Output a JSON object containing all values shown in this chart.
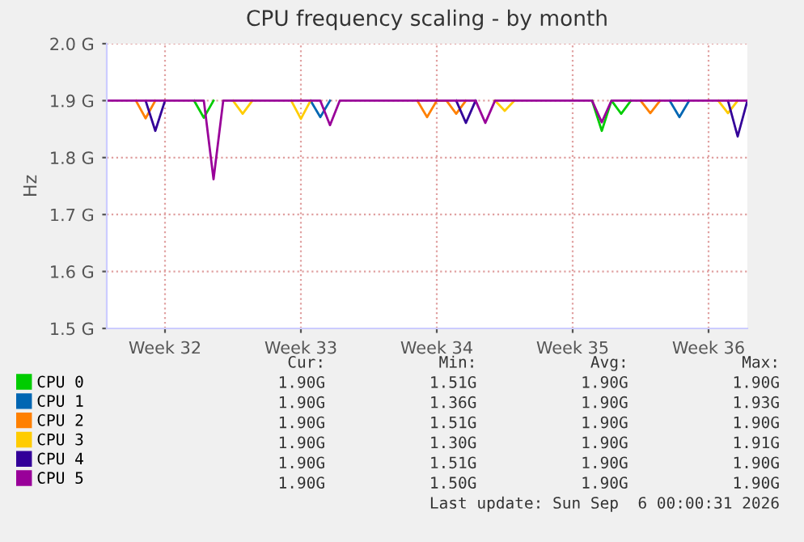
{
  "chart_data": {
    "type": "line",
    "title": "CPU frequency scaling - by month",
    "ylabel": "Hz",
    "categories": [
      null,
      null,
      null,
      null,
      null,
      null,
      "Week 32",
      null,
      null,
      null,
      null,
      null,
      null,
      null,
      null,
      null,
      null,
      null,
      null,
      null,
      "Week 33",
      null,
      null,
      null,
      null,
      null,
      null,
      null,
      null,
      null,
      null,
      null,
      null,
      null,
      "Week 34",
      null,
      null,
      null,
      null,
      null,
      null,
      null,
      null,
      null,
      null,
      null,
      null,
      null,
      "Week 35",
      null,
      null,
      null,
      null,
      null,
      null,
      null,
      null,
      null,
      null,
      null,
      null,
      null,
      "Week 36",
      null,
      null,
      null,
      null
    ],
    "ylim": [
      1.5,
      2.0
    ],
    "yticks": [
      {
        "value": 1.5,
        "label": "1.5 G"
      },
      {
        "value": 1.6,
        "label": "1.6 G"
      },
      {
        "value": 1.7,
        "label": "1.7 G"
      },
      {
        "value": 1.8,
        "label": "1.8 G"
      },
      {
        "value": 1.9,
        "label": "1.9 G"
      },
      {
        "value": 2.0,
        "label": "2.0 G"
      }
    ],
    "grid": true,
    "legend": "bottom",
    "series": [
      {
        "name": "CPU 0",
        "color": "#00cc00",
        "values": [
          null,
          null,
          null,
          null,
          null,
          null,
          null,
          null,
          null,
          1.9,
          1.87,
          1.9,
          null,
          null,
          null,
          null,
          null,
          null,
          null,
          null,
          null,
          null,
          null,
          null,
          null,
          null,
          null,
          null,
          null,
          null,
          null,
          null,
          null,
          null,
          null,
          null,
          null,
          null,
          null,
          null,
          null,
          null,
          null,
          null,
          null,
          null,
          null,
          null,
          null,
          null,
          1.9,
          1.847,
          1.9,
          1.877,
          1.9,
          null,
          null,
          null,
          null,
          null,
          null,
          null,
          null,
          null,
          null,
          null,
          null
        ]
      },
      {
        "name": "CPU 1",
        "color": "#0066b3",
        "values": [
          null,
          null,
          null,
          null,
          null,
          null,
          null,
          null,
          null,
          null,
          null,
          null,
          null,
          null,
          null,
          null,
          null,
          null,
          null,
          null,
          null,
          1.9,
          1.871,
          1.9,
          null,
          null,
          null,
          null,
          null,
          null,
          null,
          null,
          null,
          null,
          null,
          null,
          null,
          null,
          null,
          null,
          null,
          null,
          null,
          null,
          null,
          null,
          null,
          null,
          null,
          null,
          null,
          null,
          null,
          null,
          null,
          null,
          null,
          null,
          1.9,
          1.871,
          1.9,
          null,
          null,
          null,
          null,
          null,
          null
        ]
      },
      {
        "name": "CPU 2",
        "color": "#ff8000",
        "values": [
          null,
          null,
          null,
          1.9,
          1.869,
          1.9,
          null,
          null,
          null,
          null,
          null,
          null,
          null,
          null,
          null,
          null,
          null,
          null,
          null,
          null,
          null,
          null,
          null,
          null,
          null,
          null,
          null,
          null,
          null,
          null,
          null,
          null,
          1.9,
          1.871,
          1.9,
          1.9,
          1.877,
          1.9,
          null,
          null,
          null,
          null,
          null,
          null,
          null,
          null,
          null,
          null,
          null,
          null,
          null,
          null,
          null,
          null,
          null,
          1.9,
          1.878,
          1.9,
          null,
          null,
          null,
          null,
          null,
          null,
          null,
          null,
          null
        ]
      },
      {
        "name": "CPU 3",
        "color": "#ffcc00",
        "values": [
          null,
          null,
          null,
          null,
          null,
          null,
          null,
          null,
          null,
          null,
          null,
          null,
          null,
          1.9,
          1.877,
          1.9,
          null,
          null,
          null,
          1.9,
          1.868,
          1.9,
          null,
          null,
          null,
          null,
          null,
          null,
          null,
          null,
          null,
          null,
          null,
          null,
          null,
          null,
          null,
          null,
          null,
          null,
          1.9,
          1.882,
          1.9,
          null,
          null,
          null,
          null,
          null,
          null,
          null,
          null,
          null,
          null,
          null,
          null,
          null,
          null,
          null,
          null,
          null,
          null,
          null,
          null,
          1.9,
          1.878,
          1.9,
          null
        ]
      },
      {
        "name": "CPU 4",
        "color": "#330099",
        "values": [
          null,
          null,
          null,
          null,
          1.9,
          1.847,
          1.9,
          null,
          null,
          null,
          null,
          null,
          null,
          null,
          null,
          null,
          null,
          null,
          null,
          null,
          null,
          null,
          null,
          null,
          null,
          null,
          null,
          null,
          null,
          null,
          null,
          null,
          null,
          null,
          null,
          null,
          1.9,
          1.861,
          1.9,
          null,
          null,
          null,
          null,
          null,
          null,
          null,
          null,
          null,
          null,
          null,
          null,
          null,
          null,
          null,
          null,
          null,
          null,
          null,
          null,
          null,
          null,
          null,
          null,
          null,
          1.9,
          1.837,
          1.9
        ]
      },
      {
        "name": "CPU 5",
        "color": "#990099",
        "values": [
          1.9,
          1.9,
          1.9,
          1.9,
          1.9,
          1.9,
          1.9,
          1.9,
          1.9,
          1.9,
          1.9,
          1.762,
          1.9,
          1.9,
          1.9,
          1.9,
          1.9,
          1.9,
          1.9,
          1.9,
          1.9,
          1.9,
          1.9,
          1.857,
          1.9,
          1.9,
          1.9,
          1.9,
          1.9,
          1.9,
          1.9,
          1.9,
          1.9,
          1.9,
          1.9,
          1.9,
          1.9,
          1.9,
          1.9,
          1.861,
          1.9,
          1.9,
          1.9,
          1.9,
          1.9,
          1.9,
          1.9,
          1.9,
          1.9,
          1.9,
          1.9,
          1.862,
          1.9,
          1.9,
          1.9,
          1.9,
          1.9,
          1.9,
          1.9,
          1.9,
          1.9,
          1.9,
          1.9,
          1.9,
          1.9,
          1.9,
          1.9
        ]
      }
    ],
    "annotations": [
      "Cur:            Min:            Avg:            Max:",
      "1.90G           1.51G           1.90G           1.90G",
      "1.90G           1.36G           1.90G           1.93G",
      "1.90G           1.51G           1.90G           1.90G",
      "1.90G           1.30G           1.90G           1.91G",
      "1.90G           1.51G           1.90G           1.90G",
      "1.90G           1.50G           1.90G           1.90G",
      "Last update: Sun Sep  6 00:00:31 2026"
    ]
  }
}
